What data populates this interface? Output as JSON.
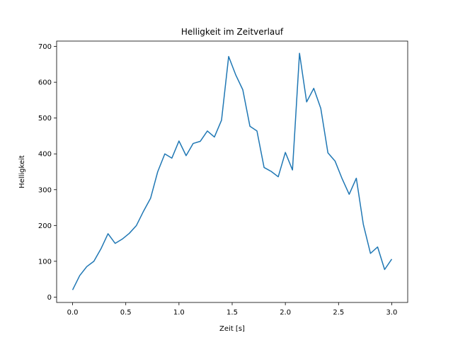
{
  "chart_data": {
    "type": "line",
    "title": "Helligkeit im Zeitverlauf",
    "xlabel": "Zeit [s]",
    "ylabel": "Helligkeit",
    "xlim": [
      -0.15,
      3.15
    ],
    "ylim": [
      -15,
      715
    ],
    "xticks": [
      0.0,
      0.5,
      1.0,
      1.5,
      2.0,
      2.5,
      3.0
    ],
    "xtick_labels": [
      "0.0",
      "0.5",
      "1.0",
      "1.5",
      "2.0",
      "2.5",
      "3.0"
    ],
    "yticks": [
      0,
      100,
      200,
      300,
      400,
      500,
      600,
      700
    ],
    "ytick_labels": [
      "0",
      "100",
      "200",
      "300",
      "400",
      "500",
      "600",
      "700"
    ],
    "grid": false,
    "series": [
      {
        "color": "#1f77b4",
        "x": [
          0.0,
          0.067,
          0.133,
          0.2,
          0.267,
          0.333,
          0.4,
          0.467,
          0.533,
          0.6,
          0.667,
          0.733,
          0.8,
          0.867,
          0.933,
          1.0,
          1.067,
          1.133,
          1.2,
          1.267,
          1.333,
          1.4,
          1.467,
          1.533,
          1.6,
          1.667,
          1.733,
          1.8,
          1.867,
          1.933,
          2.0,
          2.067,
          2.133,
          2.2,
          2.267,
          2.333,
          2.4,
          2.467,
          2.533,
          2.6,
          2.667,
          2.733,
          2.8,
          2.867,
          2.933,
          3.0
        ],
        "y": [
          20,
          60,
          85,
          100,
          135,
          177,
          150,
          162,
          178,
          200,
          240,
          276,
          350,
          400,
          388,
          436,
          395,
          429,
          435,
          464,
          447,
          494,
          672,
          621,
          579,
          477,
          464,
          362,
          351,
          336,
          404,
          355,
          681,
          545,
          583,
          527,
          403,
          380,
          331,
          287,
          332,
          203,
          122,
          140,
          77,
          106
        ]
      }
    ]
  }
}
